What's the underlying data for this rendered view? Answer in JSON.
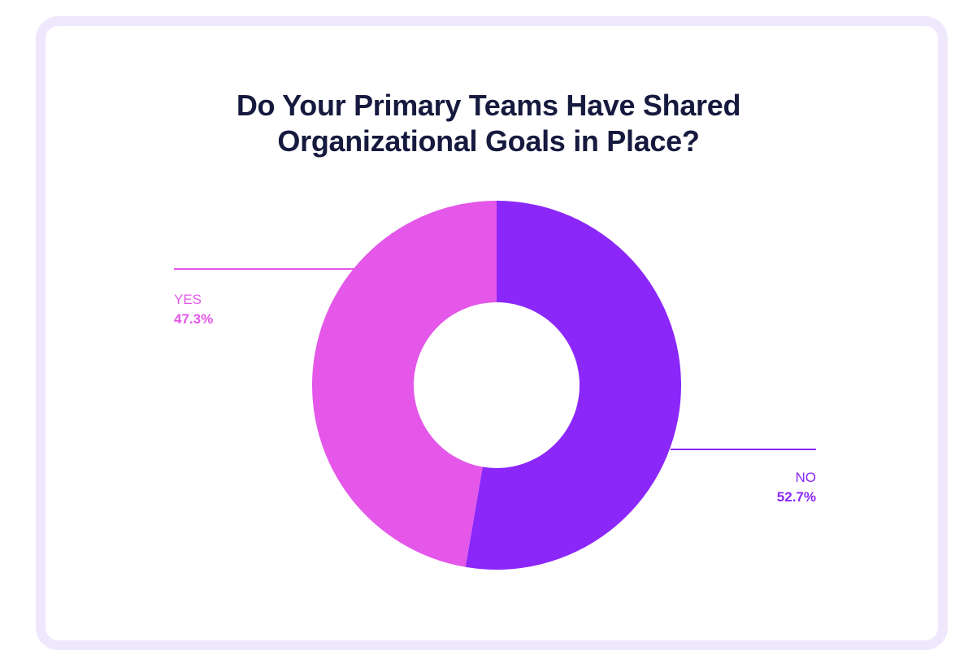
{
  "chart_data": {
    "type": "pie",
    "title_lines": [
      "Do Your Primary Teams Have Shared",
      "Organizational Goals in Place?"
    ],
    "slices": [
      {
        "label": "YES",
        "value": 47.3,
        "display": "47.3%",
        "color": "#e457e9"
      },
      {
        "label": "NO",
        "value": 52.7,
        "display": "52.7%",
        "color": "#8b27f9"
      }
    ],
    "donut": true,
    "legend": "callout-labels"
  },
  "colors": {
    "card_border": "#efe8fd",
    "title": "#161a3e"
  }
}
